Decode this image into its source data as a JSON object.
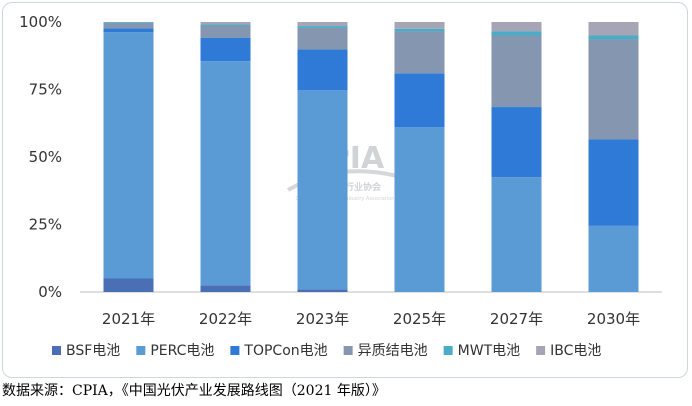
{
  "chart_data": {
    "type": "bar",
    "stacked": true,
    "categories": [
      "2021年",
      "2022年",
      "2023年",
      "2025年",
      "2027年",
      "2030年"
    ],
    "series": [
      {
        "name": "BSF电池",
        "color": "#4a6fb5",
        "values": [
          5,
          2.5,
          1,
          0,
          0,
          0
        ]
      },
      {
        "name": "PERC电池",
        "color": "#5b9bd5",
        "values": [
          91.2,
          83,
          73.8,
          61,
          42.5,
          24.5
        ]
      },
      {
        "name": "TOPCon电池",
        "color": "#2e7ad6",
        "values": [
          1.5,
          8.7,
          15,
          20,
          26,
          32
        ]
      },
      {
        "name": "异质结电池",
        "color": "#8496b0",
        "values": [
          2,
          4.5,
          8,
          15.5,
          26.5,
          37
        ]
      },
      {
        "name": "MWT电池",
        "color": "#4bacc6",
        "values": [
          0.3,
          0.5,
          0.7,
          1,
          1.5,
          1.5
        ]
      },
      {
        "name": "IBC电池",
        "color": "#a5a5b5",
        "values": [
          0,
          0.8,
          1.5,
          2.5,
          3.5,
          5
        ]
      }
    ],
    "yticks": [
      "0%",
      "25%",
      "50%",
      "75%",
      "100%"
    ],
    "ylim": [
      0,
      100
    ],
    "legend_position": "bottom",
    "grid": false
  },
  "watermark": {
    "brand": "CPIA",
    "org_name": "中国光伏行业协会",
    "org_name_en": "China Photovoltaic Industry Association"
  },
  "caption": "数据来源：CPIA，《中国光伏产业发展路线图（2021 年版）》"
}
